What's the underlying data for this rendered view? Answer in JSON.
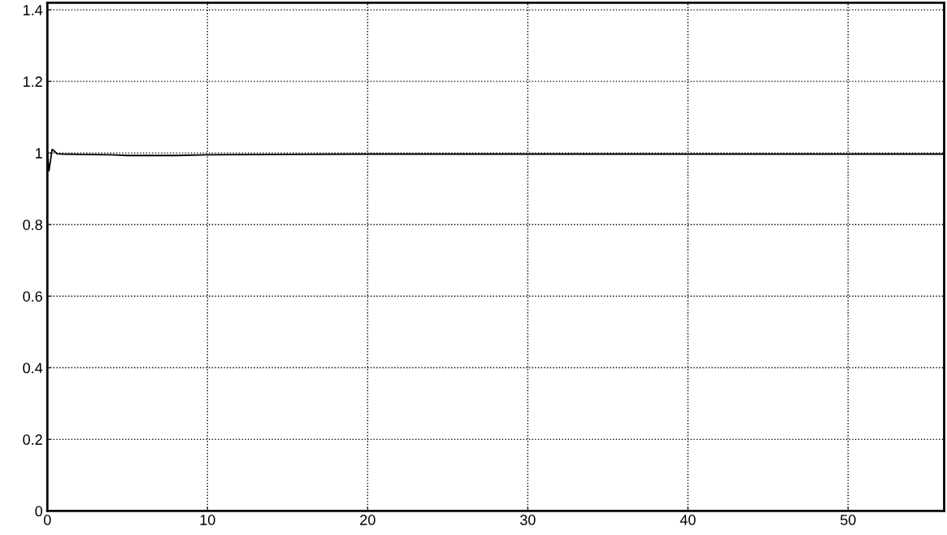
{
  "chart_data": {
    "type": "line",
    "x": [
      0,
      0.1,
      0.2,
      0.3,
      0.45,
      0.6,
      1,
      2,
      4,
      5,
      8,
      10,
      15,
      20,
      30,
      40,
      50,
      56
    ],
    "series": [
      {
        "color": "#000000",
        "values": [
          1.0,
          0.95,
          0.98,
          1.01,
          1.005,
          0.998,
          0.997,
          0.996,
          0.995,
          0.993,
          0.993,
          0.995,
          0.996,
          0.997,
          0.997,
          0.997,
          0.997,
          0.997
        ]
      }
    ],
    "xlim": [
      0,
      56
    ],
    "ylim": [
      0,
      1.42
    ],
    "xticks": [
      0,
      10,
      20,
      30,
      40,
      50
    ],
    "yticks": [
      0,
      0.2,
      0.4,
      0.6,
      0.8,
      1,
      1.2,
      1.4
    ],
    "grid": true,
    "line_style": "solid",
    "marker": "none"
  }
}
